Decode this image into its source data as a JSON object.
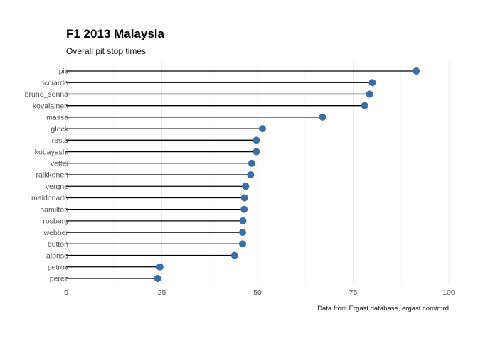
{
  "chart_data": {
    "type": "lollipop",
    "title": "F1 2013 Malaysia",
    "subtitle": "Overall pit stop times",
    "caption": "Data from Ergast database, ergast.com/mrd",
    "xlabel": "",
    "ylabel": "",
    "xlim": [
      0,
      100
    ],
    "xticks": [
      0,
      25,
      50,
      75,
      100
    ],
    "grid": "vertical",
    "point_color": "#3a6ea5",
    "line_color": "#000000",
    "categories": [
      "pic",
      "ricciardo",
      "bruno_senna",
      "kovalainen",
      "massa",
      "glock",
      "resta",
      "kobayashi",
      "vettel",
      "raikkonen",
      "vergne",
      "maldonado",
      "hamilton",
      "rosberg",
      "webber",
      "button",
      "alonso",
      "petrov",
      "perez"
    ],
    "values": [
      91.5,
      80.0,
      79.3,
      78.0,
      67.0,
      51.3,
      49.7,
      49.7,
      48.5,
      48.2,
      46.9,
      46.6,
      46.5,
      46.2,
      46.1,
      46.1,
      44.0,
      24.5,
      23.9
    ]
  }
}
